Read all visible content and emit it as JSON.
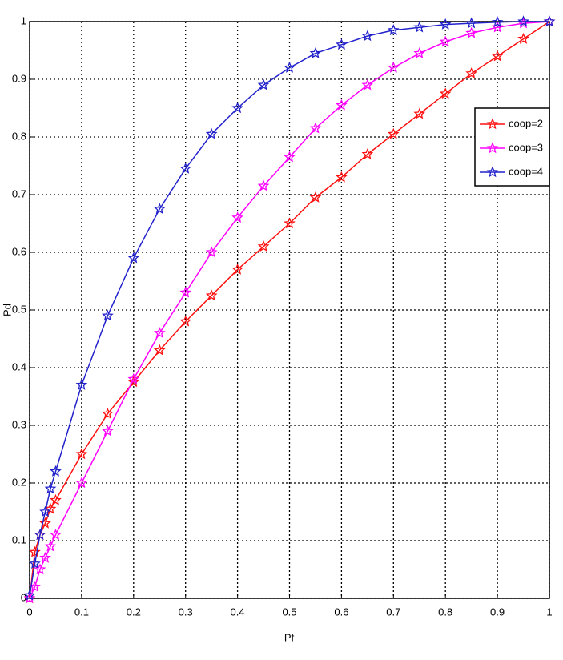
{
  "chart_data": {
    "type": "line",
    "x_label": "Pf",
    "y_label": "Pd",
    "x": [
      0,
      0.01,
      0.02,
      0.03,
      0.04,
      0.05,
      0.1,
      0.15,
      0.2,
      0.25,
      0.3,
      0.35,
      0.4,
      0.45,
      0.5,
      0.55,
      0.6,
      0.65,
      0.7,
      0.75,
      0.8,
      0.85,
      0.9,
      0.95,
      1
    ],
    "series": [
      {
        "name": "coop=2",
        "color": "#ff1010",
        "values": [
          0,
          0.08,
          0.11,
          0.13,
          0.155,
          0.17,
          0.25,
          0.32,
          0.375,
          0.43,
          0.48,
          0.525,
          0.57,
          0.61,
          0.65,
          0.695,
          0.73,
          0.77,
          0.805,
          0.84,
          0.875,
          0.91,
          0.94,
          0.97,
          1
        ]
      },
      {
        "name": "coop=3",
        "color": "#ff00ff",
        "values": [
          0,
          0.02,
          0.05,
          0.07,
          0.09,
          0.11,
          0.2,
          0.29,
          0.38,
          0.46,
          0.53,
          0.6,
          0.66,
          0.715,
          0.765,
          0.815,
          0.855,
          0.89,
          0.92,
          0.945,
          0.965,
          0.98,
          0.99,
          0.997,
          1
        ]
      },
      {
        "name": "coop=4",
        "color": "#2222cc",
        "values": [
          0.005,
          0.06,
          0.11,
          0.15,
          0.19,
          0.22,
          0.37,
          0.49,
          0.59,
          0.675,
          0.745,
          0.805,
          0.85,
          0.89,
          0.92,
          0.945,
          0.96,
          0.975,
          0.985,
          0.99,
          0.995,
          0.997,
          0.999,
          1,
          1
        ]
      }
    ],
    "xlim": [
      0,
      1
    ],
    "ylim": [
      0,
      1
    ],
    "xticks": [
      0,
      0.1,
      0.2,
      0.3,
      0.4,
      0.5,
      0.6,
      0.7,
      0.8,
      0.9,
      1
    ],
    "yticks": [
      0,
      0.1,
      0.2,
      0.3,
      0.4,
      0.5,
      0.6,
      0.7,
      0.8,
      0.9,
      1
    ],
    "grid": true,
    "legend": "upper right",
    "marker": "star"
  }
}
